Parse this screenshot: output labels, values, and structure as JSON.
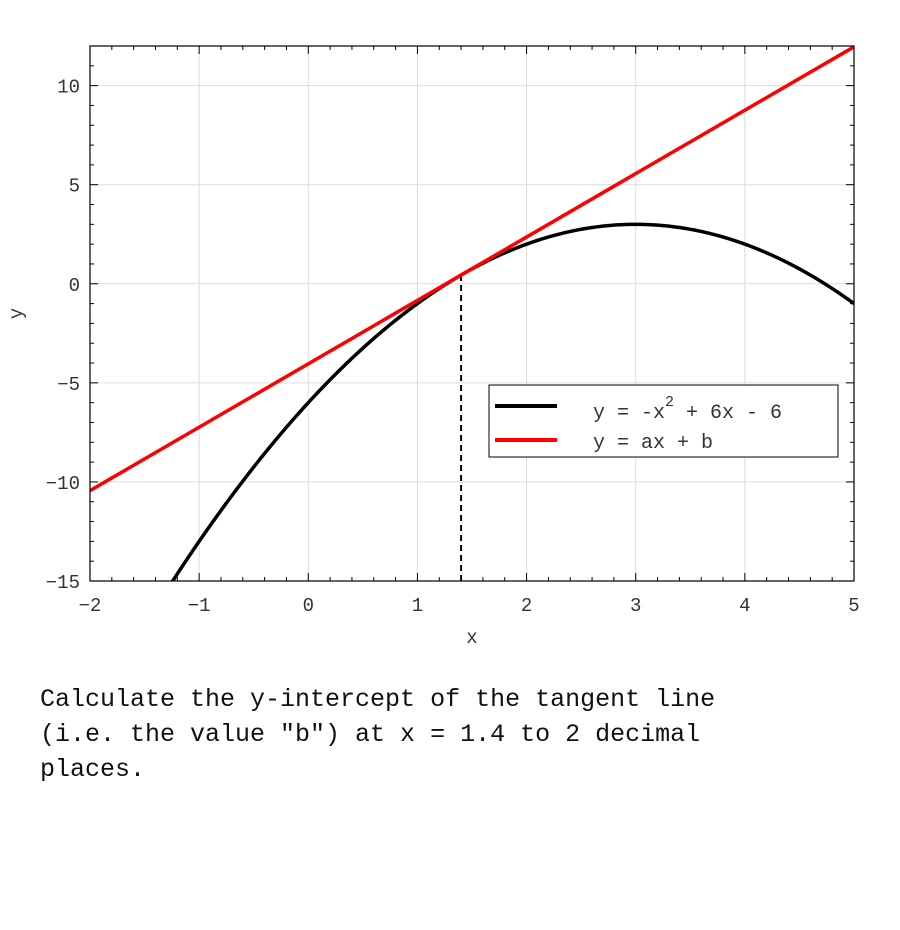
{
  "chart_data": {
    "type": "line",
    "xlabel": "x",
    "ylabel": "y",
    "xlim": [
      -2,
      5
    ],
    "ylim": [
      -15,
      12
    ],
    "xticks": [
      -2,
      -1,
      0,
      1,
      2,
      3,
      4,
      5
    ],
    "yticks": [
      -15,
      -10,
      -5,
      0,
      5,
      10
    ],
    "x_minor_step": 0.2,
    "y_minor_step": 1,
    "grid": true,
    "legend_placement": "center-right",
    "series": [
      {
        "name": "y = -x^2 + 6x - 6",
        "function": "-x^2 + 6x - 6",
        "color": "#000000"
      },
      {
        "name": "y = ax + b",
        "function": "3.2x - 4.04",
        "color": "#ff0000"
      }
    ],
    "tangent_point_x": 1.4,
    "annotation": "dashed vertical line at x = 1.4"
  },
  "legend": {
    "curve_label_main": "y = -x",
    "curve_label_sup": "2",
    "curve_label_rest": " + 6x - 6",
    "line_label": "y = ax + b"
  },
  "question": "Calculate the y-intercept of the tangent line\n(i.e. the value \"b\") at x = 1.4 to 2 decimal\nplaces."
}
